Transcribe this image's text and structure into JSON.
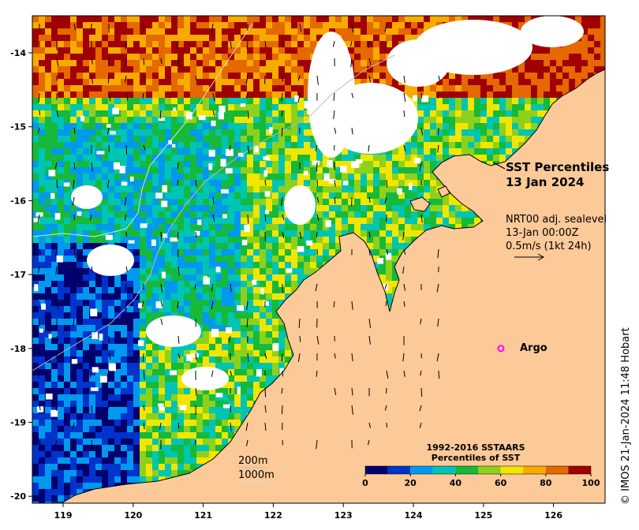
{
  "title": {
    "line1": "SST Percentiles",
    "line2": "13 Jan 2024"
  },
  "current_info": {
    "line1": "NRT00 adj. sealevel",
    "line2": "13-Jan 00:00Z",
    "line3": "0.5m/s (1kt 24h)"
  },
  "argo": {
    "label": "Argo",
    "marker_color": "#ff00ff",
    "lon": 125.25,
    "lat": -18.0
  },
  "isobaths": {
    "label1": "200m",
    "label2": "1000m"
  },
  "colorbar": {
    "title_line1": "1992-2016 SSTAARS",
    "title_line2": "Percentiles of SST",
    "ticks": [
      "0",
      "20",
      "40",
      "60",
      "80",
      "100"
    ],
    "colors": [
      "#00006e",
      "#0033cc",
      "#0099ee",
      "#00c4b4",
      "#17b93a",
      "#8ed11a",
      "#f2e600",
      "#f7aa00",
      "#e56800",
      "#a00000"
    ]
  },
  "axes": {
    "lon_ticks": [
      "119",
      "120",
      "121",
      "122",
      "123",
      "124",
      "125",
      "126"
    ],
    "lat_ticks": [
      "-14",
      "-15",
      "-16",
      "-17",
      "-18",
      "-19",
      "-20"
    ]
  },
  "colors": {
    "land": "#fcc998",
    "cloud": "#ffffff",
    "coast": "#000000"
  },
  "copyright": "© IMOS 21-Jan-2024 11:48 Hobart"
}
